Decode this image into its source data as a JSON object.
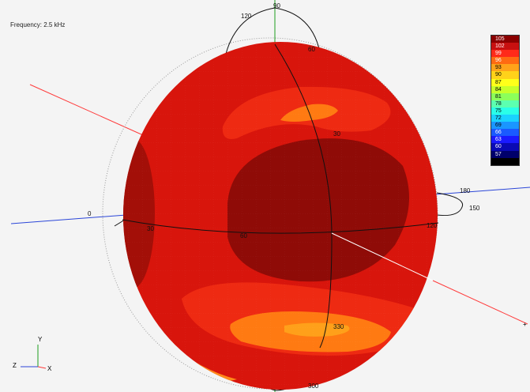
{
  "frequency_label": "Frequency: 2.5 kHz",
  "colors": {
    "background": "#f4f4f4",
    "sphere_base": "#d8150c",
    "sphere_dark": "#8f0b07",
    "orange_band": "#ff7a12",
    "red_axis": "#ff3b3b",
    "blue_axis": "#2b46d8",
    "green_axis": "#1e9e1e"
  },
  "legend": {
    "entries": [
      {
        "label": "105",
        "color": "#8b0000",
        "text_color": "#ffffff"
      },
      {
        "label": "102",
        "color": "#c81010",
        "text_color": "#ffffff"
      },
      {
        "label": "99",
        "color": "#ff2a1a",
        "text_color": "#ffffff"
      },
      {
        "label": "96",
        "color": "#ff6a12",
        "text_color": "#ffffff"
      },
      {
        "label": "93",
        "color": "#ffa31a",
        "text_color": "#000000"
      },
      {
        "label": "90",
        "color": "#ffd21a",
        "text_color": "#000000"
      },
      {
        "label": "87",
        "color": "#ffff1a",
        "text_color": "#000000"
      },
      {
        "label": "84",
        "color": "#c8ff2a",
        "text_color": "#000000"
      },
      {
        "label": "81",
        "color": "#8cff5a",
        "text_color": "#000000"
      },
      {
        "label": "78",
        "color": "#5cffb0",
        "text_color": "#000000"
      },
      {
        "label": "75",
        "color": "#2affe8",
        "text_color": "#000000"
      },
      {
        "label": "72",
        "color": "#1ad2ff",
        "text_color": "#000000"
      },
      {
        "label": "69",
        "color": "#1a96ff",
        "text_color": "#000000"
      },
      {
        "label": "66",
        "color": "#1a5aff",
        "text_color": "#ffffff"
      },
      {
        "label": "63",
        "color": "#1a1aff",
        "text_color": "#ffffff"
      },
      {
        "label": "60",
        "color": "#0a0ab4",
        "text_color": "#ffffff"
      },
      {
        "label": "57",
        "color": "#00006a",
        "text_color": "#ffffff"
      },
      {
        "label": "",
        "color": "#000000",
        "text_color": "#ffffff"
      }
    ]
  },
  "angle_labels": {
    "top_90": "90",
    "top_120": "120",
    "upper_60": "60",
    "upper_30": "30",
    "left_0": "0",
    "eq_30": "30",
    "eq_60": "60",
    "eq_120": "120",
    "right_180": "180",
    "right_150": "150",
    "bottom_330": "330",
    "bottom_300": "300"
  },
  "axes": {
    "x": "X",
    "y": "Y",
    "z": "Z",
    "x_marker": "+"
  }
}
